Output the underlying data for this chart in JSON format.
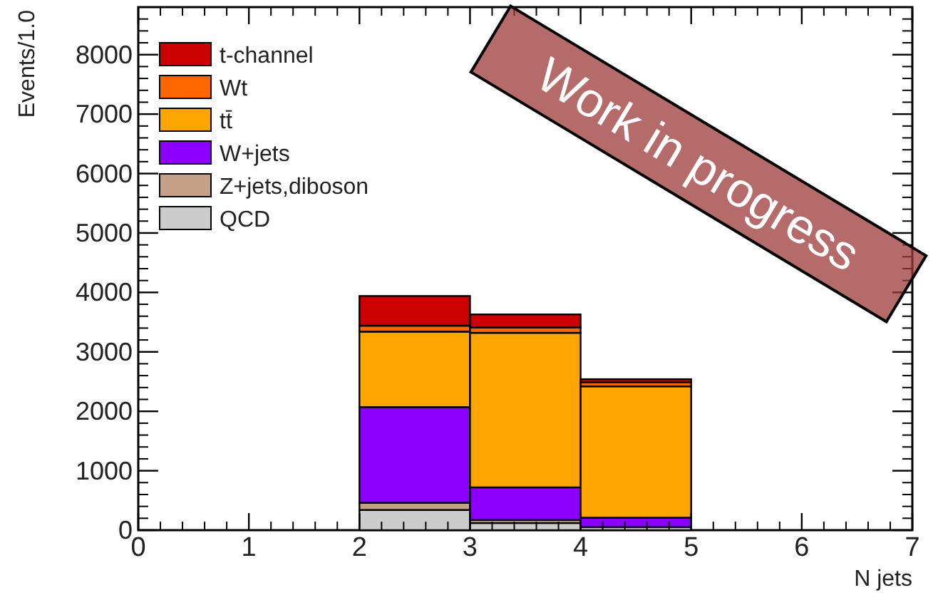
{
  "chart_data": {
    "type": "bar",
    "stacked": true,
    "xlabel": "N jets",
    "ylabel": "Events/1.0",
    "x": [
      2.5,
      3.5,
      4.5
    ],
    "xlim": [
      0,
      7
    ],
    "xticks": [
      0,
      1,
      2,
      3,
      4,
      5,
      6,
      7
    ],
    "ylim": [
      0,
      8800
    ],
    "yticks": [
      0,
      1000,
      2000,
      3000,
      4000,
      5000,
      6000,
      7000,
      8000
    ],
    "legend": "top left",
    "series": [
      {
        "name": "QCD",
        "color": "#cccccc",
        "values": [
          340,
          120,
          50
        ]
      },
      {
        "name": "Z+jets,diboson",
        "color": "#c4a088",
        "values": [
          120,
          50,
          null
        ]
      },
      {
        "name": "W+jets",
        "color": "#8b00ff",
        "values": [
          1610,
          550,
          160
        ]
      },
      {
        "name": "tt̄",
        "color": "#ffa500",
        "values": [
          1270,
          2600,
          2210
        ]
      },
      {
        "name": "Wt",
        "color": "#ff6600",
        "values": [
          100,
          90,
          70
        ]
      },
      {
        "name": "t-channel",
        "color": "#cc0000",
        "values": [
          500,
          220,
          50
        ]
      }
    ],
    "annotations": [
      "Work in progress"
    ]
  }
}
